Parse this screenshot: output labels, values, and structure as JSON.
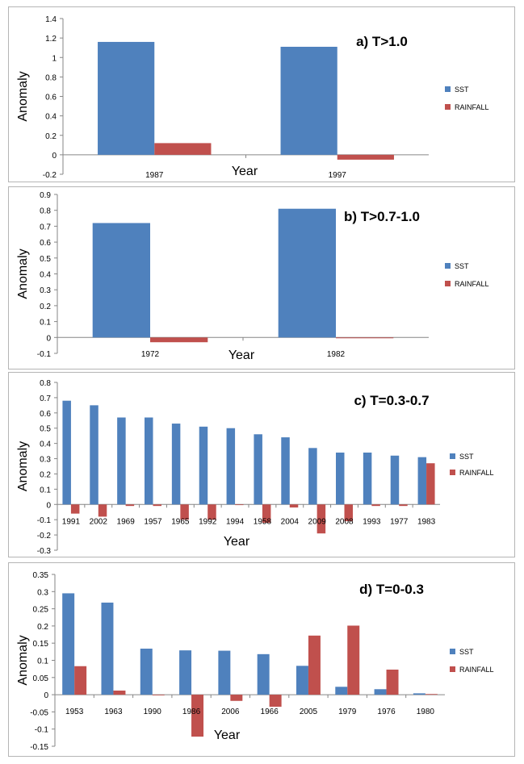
{
  "chart_data": [
    {
      "type": "bar",
      "title": "a) T>1.0",
      "xlabel": "Year",
      "ylabel": "Anomaly",
      "categories": [
        "1987",
        "1997"
      ],
      "series": [
        {
          "name": "SST",
          "values": [
            1.16,
            1.11
          ],
          "color": "#4f81bd"
        },
        {
          "name": "RAINFALL",
          "values": [
            0.12,
            -0.05
          ],
          "color": "#c0504d"
        }
      ],
      "ylim": [
        -0.2,
        1.4
      ],
      "yticks": [
        "1.4",
        "1.2",
        "1",
        "0.8",
        "0.6",
        "0.4",
        "0.2",
        "0",
        "-0.2"
      ],
      "legend": "right"
    },
    {
      "type": "bar",
      "title": "b) T>0.7-1.0",
      "xlabel": "Year",
      "ylabel": "Anomaly",
      "categories": [
        "1972",
        "1982"
      ],
      "series": [
        {
          "name": "SST",
          "values": [
            0.72,
            0.81
          ],
          "color": "#4f81bd"
        },
        {
          "name": "RAINFALL",
          "values": [
            -0.03,
            -0.005
          ],
          "color": "#c0504d"
        }
      ],
      "ylim": [
        -0.1,
        0.9
      ],
      "yticks": [
        "0.9",
        "0.8",
        "0.7",
        "0.6",
        "0.5",
        "0.4",
        "0.3",
        "0.2",
        "0.1",
        "0",
        "-0.1"
      ],
      "legend": "right"
    },
    {
      "type": "bar",
      "title": "c) T=0.3-0.7",
      "xlabel": "Year",
      "ylabel": "Anomaly",
      "categories": [
        "1991",
        "2002",
        "1969",
        "1957",
        "1965",
        "1992",
        "1994",
        "1958",
        "2004",
        "2009",
        "2008",
        "1993",
        "1977",
        "1983"
      ],
      "series": [
        {
          "name": "SST",
          "values": [
            0.68,
            0.65,
            0.57,
            0.57,
            0.53,
            0.51,
            0.5,
            0.46,
            0.44,
            0.37,
            0.34,
            0.34,
            0.32,
            0.31
          ],
          "color": "#4f81bd"
        },
        {
          "name": "RAINFALL",
          "values": [
            -0.06,
            -0.08,
            -0.01,
            -0.01,
            -0.1,
            -0.1,
            0.0,
            -0.12,
            -0.02,
            -0.19,
            -0.11,
            -0.01,
            -0.01,
            0.27
          ],
          "color": "#c0504d"
        }
      ],
      "ylim": [
        -0.3,
        0.8
      ],
      "yticks": [
        "0.8",
        "0.7",
        "0.6",
        "0.5",
        "0.4",
        "0.3",
        "0.2",
        "0.1",
        "0",
        "-0.1",
        "-0.2",
        "-0.3"
      ],
      "legend": "right"
    },
    {
      "type": "bar",
      "title": "d) T=0-0.3",
      "xlabel": "Year",
      "ylabel": "Anomaly",
      "categories": [
        "1953",
        "1963",
        "1990",
        "1986",
        "2006",
        "1966",
        "2005",
        "1979",
        "1976",
        "1980"
      ],
      "series": [
        {
          "name": "SST",
          "values": [
            0.295,
            0.268,
            0.134,
            0.129,
            0.128,
            0.118,
            0.084,
            0.023,
            0.016,
            0.004
          ],
          "color": "#4f81bd"
        },
        {
          "name": "RAINFALL",
          "values": [
            0.083,
            0.012,
            0.0,
            -0.122,
            -0.018,
            -0.035,
            0.172,
            0.201,
            0.073,
            0.002
          ],
          "color": "#c0504d"
        }
      ],
      "ylim": [
        -0.15,
        0.35
      ],
      "yticks": [
        "0.35",
        "0.3",
        "0.25",
        "0.2",
        "0.15",
        "0.1",
        "0.05",
        "0",
        "-0.05",
        "-0.1",
        "-0.15"
      ],
      "legend": "right"
    }
  ]
}
